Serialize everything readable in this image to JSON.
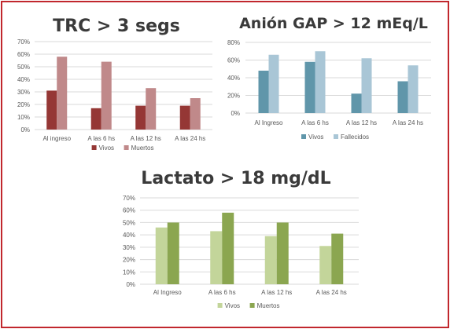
{
  "chart_data": [
    {
      "type": "bar",
      "title": "TRC > 3 segs",
      "categories": [
        "Al ingreso",
        "A las 6 hs",
        "A las 12 hs",
        "A las 24 hs"
      ],
      "series": [
        {
          "name": "Vivos",
          "values": [
            31,
            17,
            19,
            19
          ],
          "color": "#953735"
        },
        {
          "name": "Muertos",
          "values": [
            58,
            54,
            33,
            25
          ],
          "color": "#c0898a"
        }
      ],
      "yticks": [
        "0%",
        "10%",
        "20%",
        "30%",
        "40%",
        "50%",
        "60%",
        "70%"
      ],
      "ylim": [
        0,
        70
      ],
      "legend": "bottom",
      "grid": true
    },
    {
      "type": "bar",
      "title": "Anión GAP > 12 mEq/L",
      "categories": [
        "Al Ingreso",
        "A las 6 hs",
        "A las 12 hs",
        "A las 24 hs"
      ],
      "series": [
        {
          "name": "Vivos",
          "values": [
            48,
            58,
            22,
            36
          ],
          "color": "#6096aa"
        },
        {
          "name": "Fallecidos",
          "values": [
            66,
            70,
            62,
            54
          ],
          "color": "#a9c6d6"
        }
      ],
      "yticks": [
        "0%",
        "20%",
        "40%",
        "60%",
        "80%"
      ],
      "ylim": [
        0,
        80
      ],
      "legend": "bottom",
      "grid": true
    },
    {
      "type": "bar",
      "title": "Lactato > 18 mg/dL",
      "categories": [
        "Al Ingreso",
        "A las 6 hs",
        "A las 12 hs",
        "A las 24 hs"
      ],
      "series": [
        {
          "name": "Vivos",
          "values": [
            46,
            43,
            39,
            31
          ],
          "color": "#c3d59a"
        },
        {
          "name": "Muertos",
          "values": [
            50,
            58,
            50,
            41
          ],
          "color": "#8ba650"
        }
      ],
      "yticks": [
        "0%",
        "10%",
        "20%",
        "30%",
        "40%",
        "50%",
        "60%",
        "70%"
      ],
      "ylim": [
        0,
        70
      ],
      "legend": "bottom",
      "grid": true
    }
  ]
}
